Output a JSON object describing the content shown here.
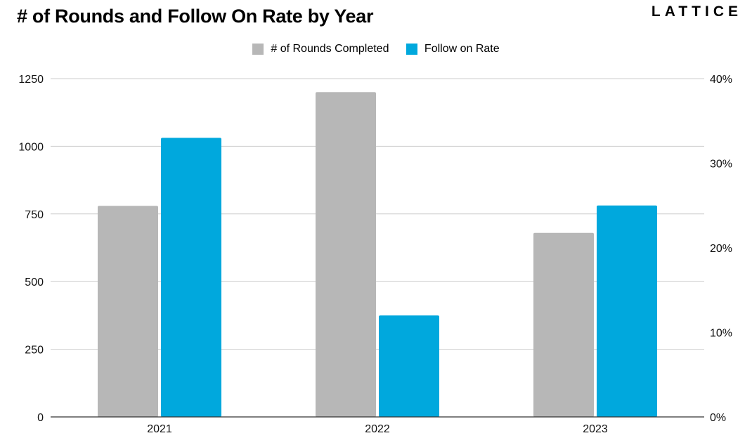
{
  "header": {
    "title": "# of Rounds and Follow On Rate by Year",
    "logo": "LATTICE"
  },
  "colors": {
    "rounds": "#b7b7b7",
    "follow_on": "#00a8dd",
    "grid": "#cccccc",
    "axis": "#333333"
  },
  "chart_data": {
    "type": "bar",
    "title": "# of Rounds and Follow On Rate by Year",
    "categories": [
      "2021",
      "2022",
      "2023"
    ],
    "series": [
      {
        "name": "# of Rounds Completed",
        "axis": "left",
        "values": [
          780,
          1200,
          680
        ]
      },
      {
        "name": "Follow on Rate",
        "axis": "right",
        "values": [
          33,
          12,
          25
        ]
      }
    ],
    "y_left": {
      "min": 0,
      "max": 1250,
      "ticks": [
        "0",
        "250",
        "500",
        "750",
        "1000",
        "1250"
      ]
    },
    "y_right": {
      "min": 0,
      "max": 40,
      "ticks": [
        "0%",
        "10%",
        "20%",
        "30%",
        "40%"
      ]
    },
    "grid": true,
    "legend_position": "top-center"
  }
}
